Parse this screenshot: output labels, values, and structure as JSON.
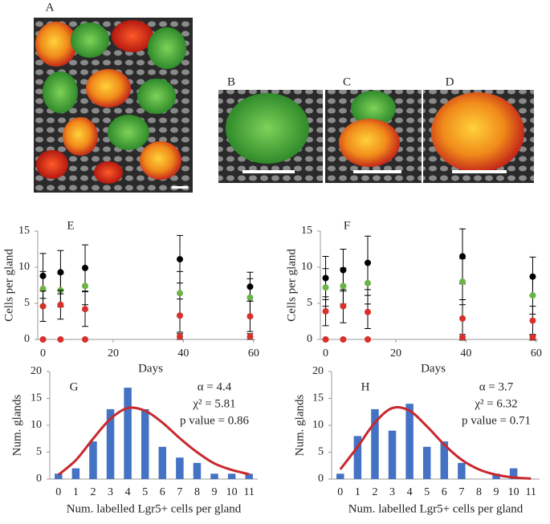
{
  "panels": [
    {
      "label": "A"
    },
    {
      "label": "B"
    },
    {
      "label": "C"
    },
    {
      "label": "D"
    }
  ],
  "chart_data": [
    {
      "type": "scatter",
      "panel": "E",
      "ylabel": "Cells per gland",
      "xlabel": "Days",
      "x": [
        0,
        5,
        12,
        39,
        59
      ],
      "xlim": [
        -1.5,
        60.5
      ],
      "xticks": [
        0,
        20,
        40,
        60
      ],
      "ylim": [
        0,
        15
      ],
      "yticks": [
        0,
        5,
        10,
        15
      ],
      "series": [
        {
          "color": "#000000",
          "values": [
            8.8,
            9.3,
            9.9,
            11.1,
            7.3
          ],
          "errors": [
            3.1,
            3.0,
            3.2,
            3.3,
            2.0
          ]
        },
        {
          "color": "#6cb349",
          "values": [
            7.0,
            6.8,
            7.4,
            6.4,
            5.8
          ],
          "errors": [
            2.4,
            2.3,
            2.6,
            3.0,
            2.6
          ]
        },
        {
          "color": "#d7312a",
          "values": [
            4.6,
            4.8,
            4.2,
            3.3,
            3.2
          ],
          "errors": [
            2.1,
            2.0,
            2.4,
            2.3,
            2.1
          ]
        },
        {
          "color": "#d7312a",
          "values": [
            0,
            0,
            0,
            0.4,
            0.4
          ],
          "errors": [
            0,
            0,
            0,
            0.4,
            0.4
          ]
        }
      ]
    },
    {
      "type": "scatter",
      "panel": "F",
      "ylabel": "Cells per gland",
      "xlabel": "Days",
      "x": [
        0,
        5,
        12,
        39,
        59
      ],
      "xlim": [
        -1.5,
        60.5
      ],
      "xticks": [
        0,
        20,
        40,
        60
      ],
      "ylim": [
        0,
        15
      ],
      "yticks": [
        0,
        5,
        10,
        15
      ],
      "series": [
        {
          "color": "#000000",
          "values": [
            8.5,
            9.6,
            10.6,
            11.5,
            8.7
          ],
          "errors": [
            3.0,
            2.9,
            3.7,
            3.8,
            2.7
          ]
        },
        {
          "color": "#6cb349",
          "values": [
            7.2,
            7.4,
            7.8,
            8.0,
            6.1
          ],
          "errors": [
            2.6,
            2.5,
            2.9,
            3.2,
            2.6
          ]
        },
        {
          "color": "#d7312a",
          "values": [
            3.9,
            4.6,
            3.8,
            2.9,
            2.6
          ],
          "errors": [
            2.0,
            2.3,
            2.3,
            2.6,
            2.0
          ]
        },
        {
          "color": "#d7312a",
          "values": [
            0,
            0,
            0,
            0.3,
            0.3
          ],
          "errors": [
            0,
            0,
            0,
            0.4,
            0.4
          ]
        }
      ]
    },
    {
      "type": "bar",
      "panel": "G",
      "ylabel": "Num. glands",
      "xlabel": "Num. labelled Lgr5+ cells per gland",
      "categories": [
        "0",
        "1",
        "2",
        "3",
        "4",
        "5",
        "6",
        "7",
        "8",
        "9",
        "10",
        "11"
      ],
      "values": [
        1,
        2,
        7,
        13,
        17,
        13,
        6,
        4,
        3,
        1,
        1,
        1
      ],
      "color": "#4472c4",
      "ylim": [
        0,
        20
      ],
      "yticks": [
        0,
        5,
        10,
        15,
        20
      ],
      "fit": {
        "color": "#c8282d",
        "values": [
          0.8,
          3.5,
          7.5,
          11.2,
          13.2,
          12.7,
          10.5,
          7.6,
          5.0,
          2.9,
          1.7,
          0.9
        ]
      },
      "annotations": [
        "α = 4.4",
        "χ² = 5.81",
        "p value = 0.86"
      ]
    },
    {
      "type": "bar",
      "panel": "H",
      "ylabel": "Num. glands",
      "xlabel": "Num. labelled Lgr5+ cells per gland",
      "categories": [
        "0",
        "1",
        "2",
        "3",
        "4",
        "5",
        "6",
        "7",
        "8",
        "9",
        "10",
        "11"
      ],
      "values": [
        1,
        8,
        13,
        9,
        14,
        6,
        7,
        3,
        0,
        1,
        2,
        0
      ],
      "color": "#4472c4",
      "ylim": [
        0,
        20
      ],
      "yticks": [
        0,
        5,
        10,
        15,
        20
      ],
      "fit": {
        "color": "#c8282d",
        "values": [
          1.8,
          6.0,
          10.5,
          13.2,
          12.7,
          9.8,
          6.4,
          3.6,
          1.8,
          0.8,
          0.3,
          0.1
        ]
      },
      "annotations": [
        "α = 3.7",
        "χ² = 6.32",
        "p value = 0.71"
      ]
    }
  ]
}
